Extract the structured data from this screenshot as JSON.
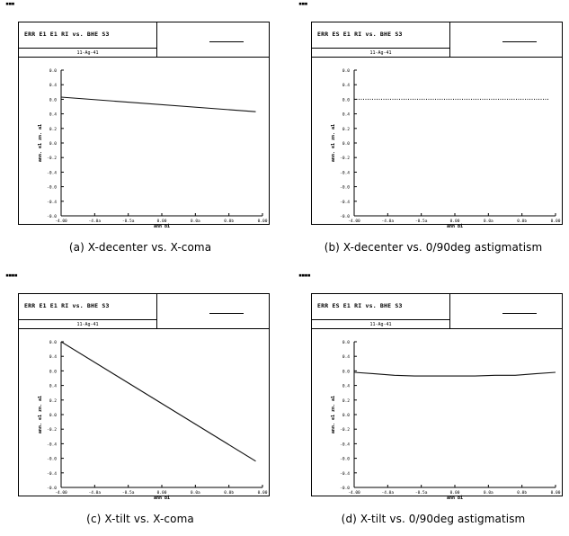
{
  "chart_data": [
    {
      "type": "line",
      "panel_id": "a",
      "corner_mark": "▪▪▪",
      "caption": "(a) X-decenter vs. X-coma",
      "header_title": "ERR E1 E1 RI vs. BHE S3",
      "header_date": "11-Ag-41",
      "xlabel": "ann bi",
      "ylabel": "ann. e1 zn. a1",
      "xlim": [
        -0.15,
        0.15
      ],
      "ylim": [
        -0.1,
        0.1
      ],
      "xticks": [
        "-4.00",
        "-4.0a",
        "-0.5a",
        "0.00",
        "0.0a",
        "0.0b",
        "0.00"
      ],
      "yticks": [
        "0.0",
        "0.4",
        "0.0",
        "0.4",
        "0.2",
        "0.0",
        "-0.2",
        "-0.4",
        "-0.0",
        "-0.4",
        "-0.0"
      ],
      "series": [
        {
          "style": "solid",
          "x": [
            -0.15,
            0.14
          ],
          "y": [
            0.063,
            0.043
          ]
        }
      ]
    },
    {
      "type": "line",
      "panel_id": "b",
      "corner_mark": "▪▪▪",
      "caption": "(b) X-decenter vs. 0/90deg astigmatism",
      "header_title": "ERR ES E1 RI vs. BHE S3",
      "header_date": "11-Ag-41",
      "xlabel": "ann bi",
      "ylabel": "ann. e1 zn. a1",
      "xlim": [
        -0.15,
        0.15
      ],
      "ylim": [
        -0.1,
        0.1
      ],
      "xticks": [
        "-4.00",
        "-4.0a",
        "-0.5a",
        "0.00",
        "0.0a",
        "0.0b",
        "0.00"
      ],
      "yticks": [
        "0.0",
        "0.4",
        "0.0",
        "0.4",
        "0.2",
        "0.0",
        "-0.2",
        "-0.4",
        "-0.0",
        "-0.4",
        "-0.0"
      ],
      "series": [
        {
          "style": "dotted",
          "x": [
            -0.15,
            0.14
          ],
          "y": [
            0.06,
            0.06
          ]
        }
      ]
    },
    {
      "type": "line",
      "panel_id": "c",
      "corner_mark": "▪▪▪▪",
      "caption": "(c) X-tilt vs. X-coma",
      "header_title": "ERR E1 E1 RI vs. BHE S3",
      "header_date": "11-Ag-41",
      "xlabel": "ann bi",
      "ylabel": "ann. e1 zn. a1",
      "xlim": [
        -0.15,
        0.15
      ],
      "ylim": [
        -0.1,
        0.1
      ],
      "xticks": [
        "-4.00",
        "-4.0a",
        "-0.5a",
        "0.00",
        "0.0a",
        "0.0b",
        "0.00"
      ],
      "yticks": [
        "0.0",
        "0.4",
        "0.0",
        "0.4",
        "0.2",
        "0.0",
        "-0.2",
        "-0.4",
        "-0.0",
        "-0.4",
        "-0.0"
      ],
      "series": [
        {
          "style": "solid",
          "x": [
            -0.15,
            0.14
          ],
          "y": [
            0.1,
            -0.064
          ]
        }
      ]
    },
    {
      "type": "line",
      "panel_id": "d",
      "corner_mark": "▪▪▪▪",
      "caption": "(d) X-tilt vs. 0/90deg astigmatism",
      "header_title": "ERR ES E1 RI vs. BHE S3",
      "header_date": "11-Ag-41",
      "xlabel": "ann bi",
      "ylabel": "ann. e1 zn. a1",
      "xlim": [
        -0.15,
        0.15
      ],
      "ylim": [
        -0.1,
        0.1
      ],
      "xticks": [
        "-4.00",
        "-4.0a",
        "-0.5a",
        "0.00",
        "0.0a",
        "0.0b",
        "0.00"
      ],
      "yticks": [
        "0.0",
        "0.4",
        "0.0",
        "0.4",
        "0.2",
        "0.0",
        "-0.2",
        "-0.4",
        "-0.0",
        "-0.4",
        "-0.0"
      ],
      "series": [
        {
          "style": "solid",
          "x": [
            -0.15,
            -0.12,
            -0.09,
            -0.06,
            -0.03,
            0.0,
            0.03,
            0.06,
            0.09,
            0.12,
            0.15
          ],
          "y": [
            0.058,
            0.056,
            0.054,
            0.053,
            0.053,
            0.053,
            0.053,
            0.054,
            0.054,
            0.056,
            0.058
          ]
        }
      ]
    }
  ]
}
